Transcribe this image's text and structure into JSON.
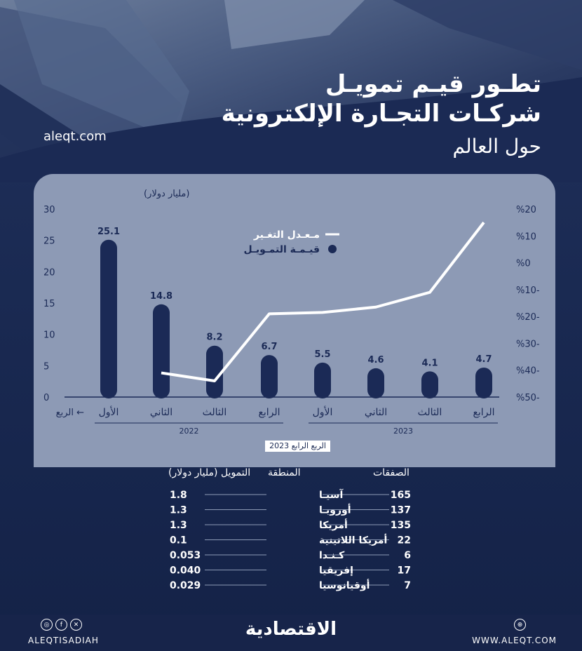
{
  "header": {
    "title_line1": "تطـور قيـم تمويـل",
    "title_line2": "شركـات التجـارة الإلكترونية",
    "title_line3": "حول العالم",
    "site": "aleqt.com"
  },
  "chart_data": {
    "type": "bar",
    "categories": [
      "الأول",
      "الثاني",
      "الثالث",
      "الرابع",
      "الأول",
      "الثاني",
      "الثالث",
      "الرابع"
    ],
    "quarter_axis_label": "الربع",
    "year_groups": [
      {
        "label": "2022",
        "from": 0,
        "to": 3
      },
      {
        "label": "2023",
        "from": 4,
        "to": 7
      }
    ],
    "left_axis_unit": "(مليار دولار)",
    "left_ticks": [
      0,
      5,
      10,
      15,
      20,
      25,
      30
    ],
    "right_ticks": [
      "%20",
      "%10",
      "%0",
      "%10-",
      "%20-",
      "%30-",
      "%40-",
      "%50-"
    ],
    "ylim_left": [
      0,
      30
    ],
    "ylim_right": [
      -50,
      20
    ],
    "series": [
      {
        "name": "قيـمـة التمـويـل",
        "kind": "bar",
        "axis": "left",
        "color": "#1b2a56",
        "values": [
          25.1,
          14.8,
          8.2,
          6.7,
          5.5,
          4.6,
          4.1,
          4.7
        ]
      },
      {
        "name": "مـعـدل التغـير",
        "kind": "line",
        "axis": "right",
        "color": "#ffffff",
        "values": [
          null,
          -41,
          -44,
          -19,
          -18.5,
          -16.5,
          -11,
          15
        ]
      }
    ],
    "legend_placement": "top-center"
  },
  "table": {
    "badge": "الربع الرابع 2023",
    "headers": {
      "deals": "الصفقات",
      "region": "المنطقة",
      "funding": "التمويل (مليار دولار)"
    },
    "rows": [
      {
        "deals": "165",
        "region": "آسيـا",
        "funding": "1.8"
      },
      {
        "deals": "137",
        "region": "أوروبـا",
        "funding": "1.3"
      },
      {
        "deals": "135",
        "region": "أمريكا",
        "funding": "1.3"
      },
      {
        "deals": "22",
        "region": "أمريكا اللاتينية",
        "funding": "0.1"
      },
      {
        "deals": "6",
        "region": "كـنـدا",
        "funding": "0.053"
      },
      {
        "deals": "17",
        "region": "إفريقيا",
        "funding": "0.040"
      },
      {
        "deals": "7",
        "region": "أوقيانوسيا",
        "funding": "0.029"
      }
    ]
  },
  "footer": {
    "left": "ALEQTISADIAH",
    "logo": "الاقتصادية",
    "right": "WWW.ALEQT.COM",
    "social_icons": [
      "instagram-icon",
      "facebook-icon",
      "x-icon"
    ],
    "web_icon": "globe-icon"
  }
}
